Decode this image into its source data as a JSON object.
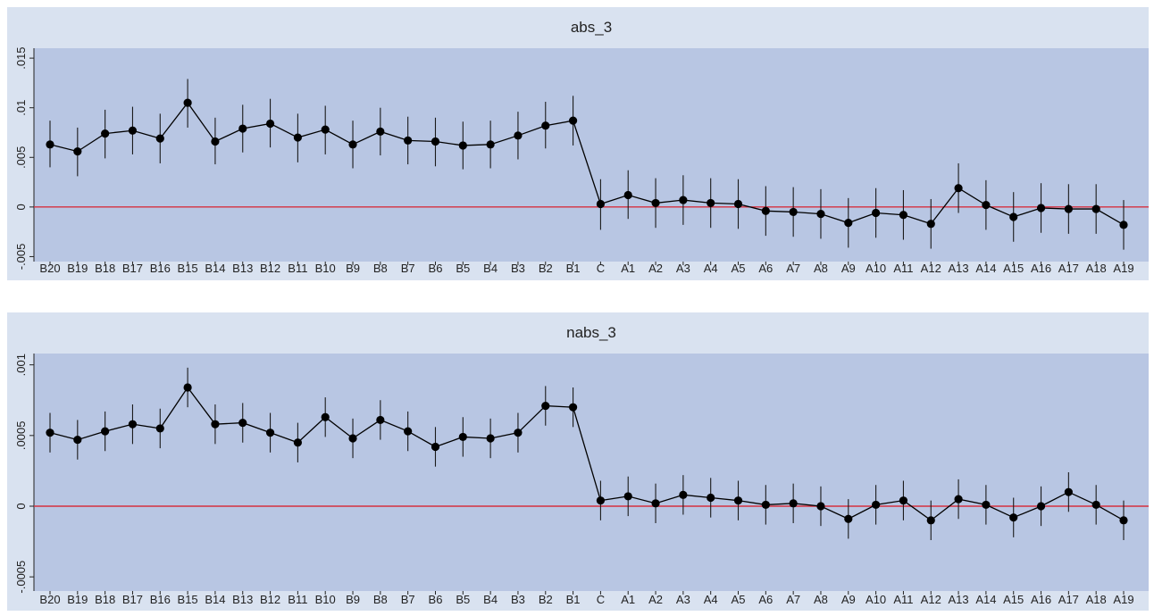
{
  "colors": {
    "outer_background": "#d9e2f0",
    "plot_background": "#b8c6e3",
    "reference_line": "#d6303f",
    "series": "#000000"
  },
  "chart_data": [
    {
      "type": "line",
      "title": "abs_3",
      "xlabel": "",
      "ylabel": "",
      "categories": [
        "B20",
        "B19",
        "B18",
        "B17",
        "B16",
        "B15",
        "B14",
        "B13",
        "B12",
        "B11",
        "B10",
        "B9",
        "B8",
        "B7",
        "B6",
        "B5",
        "B4",
        "B3",
        "B2",
        "B1",
        "C",
        "A1",
        "A2",
        "A3",
        "A4",
        "A5",
        "A6",
        "A7",
        "A8",
        "A9",
        "A10",
        "A11",
        "A12",
        "A13",
        "A14",
        "A15",
        "A16",
        "A17",
        "A18",
        "A19"
      ],
      "values": [
        0.0063,
        0.0056,
        0.0074,
        0.0077,
        0.0069,
        0.0105,
        0.0066,
        0.0079,
        0.0084,
        0.007,
        0.0078,
        0.0063,
        0.0076,
        0.0067,
        0.0066,
        0.0062,
        0.0063,
        0.0072,
        0.0082,
        0.0087,
        0.0003,
        0.0012,
        0.0004,
        0.0007,
        0.0004,
        0.0003,
        -0.0004,
        -0.0005,
        -0.0007,
        -0.0016,
        -0.0006,
        -0.0008,
        -0.0017,
        0.0019,
        0.0002,
        -0.001,
        -0.0001,
        -0.0002,
        -0.0002,
        -0.0018
      ],
      "ci_low": [
        0.004,
        0.0031,
        0.0049,
        0.0053,
        0.0044,
        0.008,
        0.0043,
        0.0055,
        0.006,
        0.0045,
        0.0053,
        0.0039,
        0.0052,
        0.0043,
        0.0041,
        0.0038,
        0.0039,
        0.0048,
        0.0059,
        0.0062,
        -0.0023,
        -0.0012,
        -0.0021,
        -0.0018,
        -0.0021,
        -0.0022,
        -0.0029,
        -0.003,
        -0.0032,
        -0.0041,
        -0.0031,
        -0.0033,
        -0.0042,
        -0.0006,
        -0.0023,
        -0.0035,
        -0.0026,
        -0.0027,
        -0.0027,
        -0.0043
      ],
      "ci_high": [
        0.0087,
        0.008,
        0.0098,
        0.0101,
        0.0094,
        0.0129,
        0.009,
        0.0103,
        0.0109,
        0.0094,
        0.0102,
        0.0087,
        0.01,
        0.0091,
        0.009,
        0.0086,
        0.0087,
        0.0096,
        0.0106,
        0.0112,
        0.0028,
        0.0037,
        0.0029,
        0.0032,
        0.0029,
        0.0028,
        0.0021,
        0.002,
        0.0018,
        0.0009,
        0.0019,
        0.0017,
        0.0008,
        0.0044,
        0.0027,
        0.0015,
        0.0024,
        0.0023,
        0.0023,
        0.0007
      ],
      "ylim": [
        -0.0055,
        0.016
      ],
      "yticks": [
        -0.005,
        0,
        0.005,
        0.01,
        0.015
      ],
      "ytick_labels": [
        "-.005",
        "0",
        ".005",
        ".01",
        ".015"
      ],
      "reference_line": 0,
      "grid": false,
      "legend": "none"
    },
    {
      "type": "line",
      "title": "nabs_3",
      "xlabel": "",
      "ylabel": "",
      "categories": [
        "B20",
        "B19",
        "B18",
        "B17",
        "B16",
        "B15",
        "B14",
        "B13",
        "B12",
        "B11",
        "B10",
        "B9",
        "B8",
        "B7",
        "B6",
        "B5",
        "B4",
        "B3",
        "B2",
        "B1",
        "C",
        "A1",
        "A2",
        "A3",
        "A4",
        "A5",
        "A6",
        "A7",
        "A8",
        "A9",
        "A10",
        "A11",
        "A12",
        "A13",
        "A14",
        "A15",
        "A16",
        "A17",
        "A18",
        "A19"
      ],
      "values": [
        0.00052,
        0.00047,
        0.00053,
        0.00058,
        0.00055,
        0.00084,
        0.00058,
        0.00059,
        0.00052,
        0.00045,
        0.00063,
        0.00048,
        0.00061,
        0.00053,
        0.00042,
        0.00049,
        0.00048,
        0.00052,
        0.00071,
        0.0007,
        4e-05,
        7e-05,
        2e-05,
        8e-05,
        6e-05,
        4e-05,
        1e-05,
        2e-05,
        0,
        -9e-05,
        1e-05,
        4e-05,
        -0.0001,
        5e-05,
        1e-05,
        -8e-05,
        0,
        0.0001,
        1e-05,
        -0.0001
      ],
      "ci_low": [
        0.00038,
        0.00033,
        0.00039,
        0.00044,
        0.00041,
        0.0007,
        0.00044,
        0.00045,
        0.00038,
        0.00031,
        0.00049,
        0.00034,
        0.00047,
        0.00039,
        0.00028,
        0.00035,
        0.00034,
        0.00038,
        0.00057,
        0.00056,
        -0.0001,
        -7e-05,
        -0.00012,
        -6e-05,
        -8e-05,
        -0.0001,
        -0.00013,
        -0.00012,
        -0.00014,
        -0.00023,
        -0.00013,
        -0.0001,
        -0.00024,
        -9e-05,
        -0.00013,
        -0.00022,
        -0.00014,
        -4e-05,
        -0.00013,
        -0.00024
      ],
      "ci_high": [
        0.00066,
        0.00061,
        0.00067,
        0.00072,
        0.00069,
        0.00098,
        0.00072,
        0.00073,
        0.00066,
        0.00059,
        0.00077,
        0.00062,
        0.00075,
        0.00067,
        0.00056,
        0.00063,
        0.00062,
        0.00066,
        0.00085,
        0.00084,
        0.00018,
        0.00021,
        0.00016,
        0.00022,
        0.0002,
        0.00018,
        0.00015,
        0.00016,
        0.00014,
        5e-05,
        0.00015,
        0.00018,
        4e-05,
        0.00019,
        0.00015,
        6e-05,
        0.00014,
        0.00024,
        0.00015,
        4e-05
      ],
      "ylim": [
        -0.0006,
        0.00108
      ],
      "yticks": [
        -0.0005,
        0,
        0.0005,
        0.001
      ],
      "ytick_labels": [
        "-.0005",
        "0",
        ".0005",
        ".001"
      ],
      "reference_line": 0,
      "grid": false,
      "legend": "none"
    }
  ]
}
